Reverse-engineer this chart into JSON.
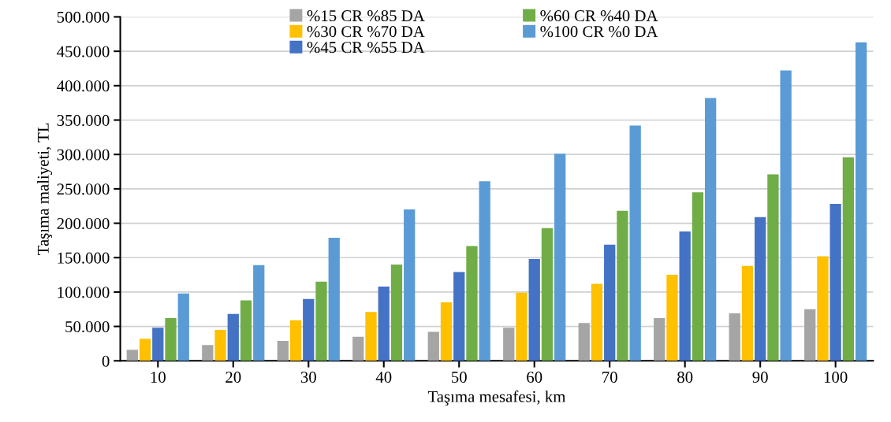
{
  "chart_data": {
    "type": "bar",
    "xlabel": "Taşıma mesafesi, km",
    "ylabel": "Taşıma maliyeti, TL",
    "categories": [
      "10",
      "20",
      "30",
      "40",
      "50",
      "60",
      "70",
      "80",
      "90",
      "100"
    ],
    "series": [
      {
        "name": "%15 CR %85 DA",
        "color": "#a5a5a5",
        "values": [
          16000,
          23000,
          29000,
          35000,
          42000,
          48000,
          55000,
          62000,
          69000,
          75000
        ]
      },
      {
        "name": "%30 CR %70 DA",
        "color": "#ffc000",
        "values": [
          32000,
          45000,
          59000,
          71000,
          85000,
          99000,
          112000,
          125000,
          138000,
          152000
        ]
      },
      {
        "name": "%45 CR %55 DA",
        "color": "#4472c4",
        "values": [
          48000,
          68000,
          90000,
          108000,
          129000,
          148000,
          169000,
          188000,
          209000,
          228000
        ]
      },
      {
        "name": "%60 CR %40 DA",
        "color": "#70ad47",
        "values": [
          62000,
          88000,
          115000,
          140000,
          167000,
          193000,
          218000,
          245000,
          271000,
          296000
        ]
      },
      {
        "name": "%100 CR %0 DA",
        "color": "#5b9bd5",
        "values": [
          98000,
          139000,
          179000,
          220000,
          261000,
          301000,
          342000,
          382000,
          422000,
          463000
        ]
      }
    ],
    "ylim": [
      0,
      500000
    ],
    "yticks": [
      {
        "value": 0,
        "label": "0"
      },
      {
        "value": 50000,
        "label": "50.000"
      },
      {
        "value": 100000,
        "label": "100.000"
      },
      {
        "value": 150000,
        "label": "150.000"
      },
      {
        "value": 200000,
        "label": "200.000"
      },
      {
        "value": 250000,
        "label": "250.000"
      },
      {
        "value": 300000,
        "label": "300.000"
      },
      {
        "value": 350000,
        "label": "350.000"
      },
      {
        "value": 400000,
        "label": "400.000"
      },
      {
        "value": 450000,
        "label": "450.000"
      },
      {
        "value": 500000,
        "label": "500.000"
      }
    ],
    "grid": "y",
    "legend": "top"
  }
}
